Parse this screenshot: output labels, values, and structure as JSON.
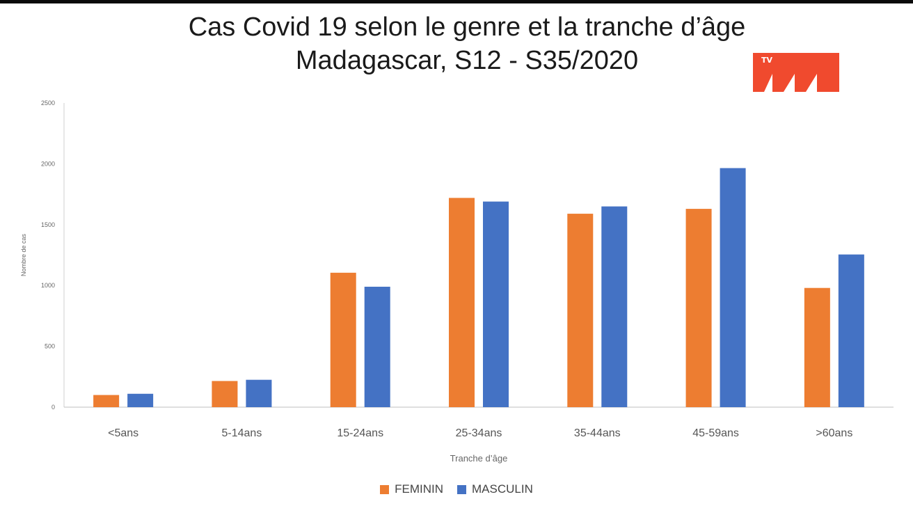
{
  "chart_data": {
    "type": "bar",
    "title": "Cas Covid 19 selon le genre et la tranche d’âge",
    "subtitle": "Madagascar,  S12 - S35/2020",
    "xlabel": "Tranche d’âge",
    "ylabel": "Nombre de cas",
    "ylim": [
      0,
      2500
    ],
    "yticks": [
      0,
      500,
      1000,
      1500,
      2000,
      2500
    ],
    "grid": false,
    "legend_position": "bottom",
    "categories": [
      "<5ans",
      "5-14ans",
      "15-24ans",
      "25-34ans",
      "35-44ans",
      "45-59ans",
      ">60ans"
    ],
    "series": [
      {
        "name": "FEMININ",
        "color": "#ED7D31",
        "values": [
          100,
          215,
          1105,
          1720,
          1590,
          1630,
          980
        ]
      },
      {
        "name": "MASCULIN",
        "color": "#4472C4",
        "values": [
          110,
          225,
          990,
          1690,
          1650,
          1965,
          1255
        ]
      }
    ]
  },
  "logo": {
    "text": "TV",
    "name": "tv-channel-logo",
    "color": "#F04A2E"
  }
}
